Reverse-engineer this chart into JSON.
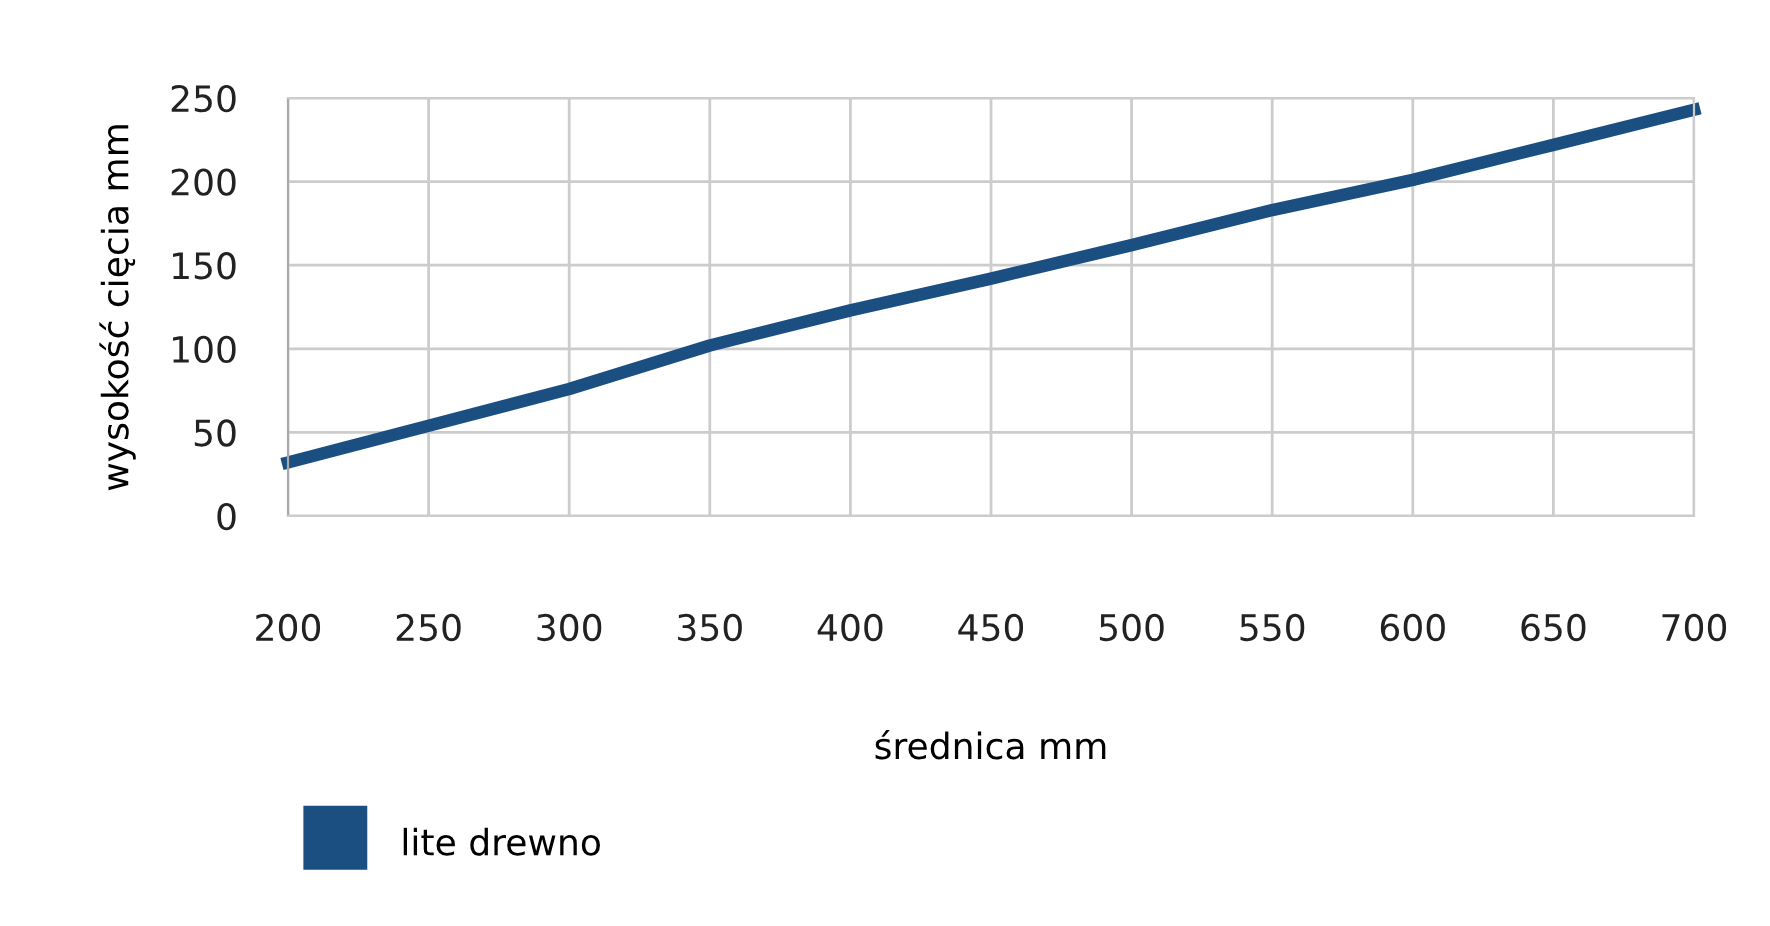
{
  "chart_data": {
    "type": "line",
    "xlabel": "średnica mm",
    "ylabel": "wysokość cięcia mm",
    "x": [
      200,
      250,
      300,
      350,
      400,
      450,
      500,
      550,
      600,
      650,
      700
    ],
    "series": [
      {
        "name": "lite drewno",
        "color": "#1b4f82",
        "values": [
          32,
          54,
          76,
          102,
          123,
          142,
          162,
          183,
          201,
          222,
          243
        ]
      }
    ],
    "xlim": [
      200,
      700
    ],
    "xticks": [
      200,
      250,
      300,
      350,
      400,
      450,
      500,
      550,
      600,
      650,
      700
    ],
    "ylim": [
      0,
      250
    ],
    "yticks": [
      0,
      50,
      100,
      150,
      200,
      250
    ],
    "grid": true,
    "legend": "bottom left",
    "marker": "none",
    "line_style": "solid"
  }
}
